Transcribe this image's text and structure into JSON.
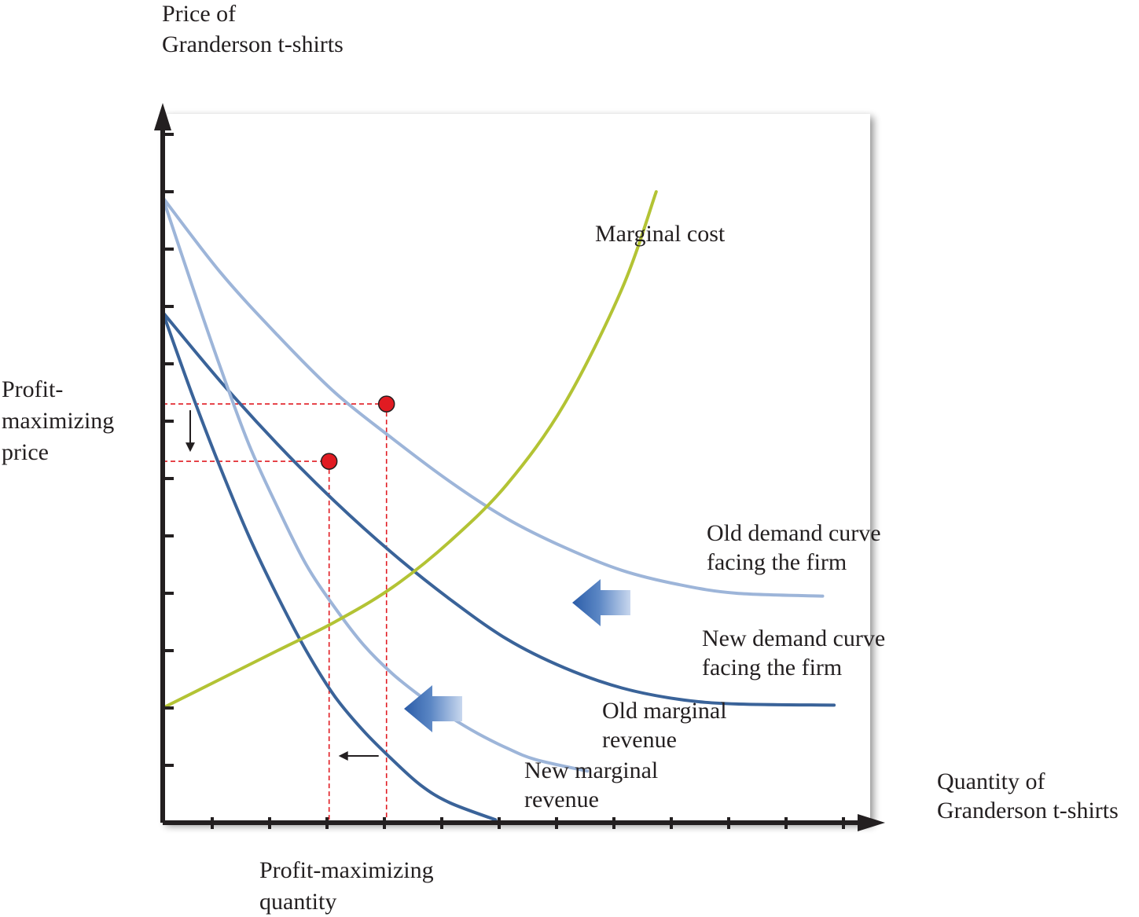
{
  "chart_data": {
    "type": "line",
    "title": "",
    "ylabel": [
      "Price of",
      "Granderson t-shirts"
    ],
    "xlabel": [
      "Quantity of",
      "Granderson t-shirts"
    ],
    "xlim": [
      0,
      12
    ],
    "ylim": [
      0,
      12
    ],
    "x_ticks": [
      1,
      2,
      3,
      4,
      5,
      6,
      7,
      8,
      9,
      10,
      11,
      12
    ],
    "y_ticks": [
      1,
      2,
      3,
      4,
      5,
      6,
      7,
      8,
      9,
      10,
      11,
      12
    ],
    "grid": false,
    "series": [
      {
        "name": "Old demand curve facing the firm",
        "label_lines": [
          "Old demand curve",
          "facing the firm"
        ],
        "color": "#9db5d9",
        "points": [
          [
            0,
            10.9
          ],
          [
            1,
            9.6
          ],
          [
            2,
            8.5
          ],
          [
            3,
            7.5
          ],
          [
            4,
            6.7
          ],
          [
            5,
            5.95
          ],
          [
            6,
            5.3
          ],
          [
            7,
            4.8
          ],
          [
            8,
            4.4
          ],
          [
            9,
            4.15
          ],
          [
            10,
            4.0
          ],
          [
            11.5,
            3.95
          ]
        ]
      },
      {
        "name": "New demand curve facing the firm",
        "label_lines": [
          "New demand curve",
          "facing the firm"
        ],
        "color": "#3a6399",
        "points": [
          [
            0,
            8.9
          ],
          [
            1,
            7.7
          ],
          [
            2,
            6.6
          ],
          [
            3,
            5.6
          ],
          [
            4,
            4.7
          ],
          [
            5,
            3.9
          ],
          [
            6,
            3.2
          ],
          [
            7,
            2.7
          ],
          [
            8,
            2.35
          ],
          [
            9,
            2.15
          ],
          [
            10,
            2.07
          ],
          [
            11.7,
            2.05
          ]
        ]
      },
      {
        "name": "Old marginal revenue",
        "label_lines": [
          "Old marginal",
          "revenue"
        ],
        "color": "#9db5d9",
        "points": [
          [
            0,
            10.9
          ],
          [
            0.5,
            9.4
          ],
          [
            1,
            7.95
          ],
          [
            1.5,
            6.6
          ],
          [
            2,
            5.5
          ],
          [
            2.5,
            4.5
          ],
          [
            3,
            3.75
          ],
          [
            3.5,
            3.1
          ],
          [
            4,
            2.6
          ],
          [
            4.5,
            2.2
          ],
          [
            5,
            1.85
          ],
          [
            5.5,
            1.55
          ],
          [
            6,
            1.3
          ],
          [
            6.5,
            1.1
          ],
          [
            7.4,
            0.9
          ]
        ]
      },
      {
        "name": "New marginal revenue",
        "label_lines": [
          "New marginal",
          "revenue"
        ],
        "color": "#3a6399",
        "points": [
          [
            0,
            8.9
          ],
          [
            0.5,
            7.5
          ],
          [
            1,
            6.2
          ],
          [
            1.5,
            5.0
          ],
          [
            2,
            3.95
          ],
          [
            2.5,
            3.0
          ],
          [
            3,
            2.2
          ],
          [
            3.5,
            1.6
          ],
          [
            4,
            1.1
          ],
          [
            4.5,
            0.65
          ],
          [
            5,
            0.35
          ],
          [
            5.8,
            0.05
          ]
        ]
      },
      {
        "name": "Marginal cost",
        "label_lines": [
          "Marginal cost"
        ],
        "color": "#b3c334",
        "points": [
          [
            0,
            2.0
          ],
          [
            1,
            2.5
          ],
          [
            2,
            3.0
          ],
          [
            3,
            3.5
          ],
          [
            4,
            4.1
          ],
          [
            5,
            4.9
          ],
          [
            6,
            5.9
          ],
          [
            7,
            7.3
          ],
          [
            8,
            9.3
          ],
          [
            8.6,
            11.0
          ]
        ]
      }
    ],
    "equilibria": [
      {
        "x": 3.9,
        "y": 7.3,
        "on": "Old demand curve facing the firm"
      },
      {
        "x": 2.9,
        "y": 6.3,
        "on": "New demand curve facing the firm"
      }
    ],
    "annotations": {
      "price": [
        "Profit-",
        "maximizing",
        "price"
      ],
      "quantity": [
        "Profit-maximizing",
        "quantity"
      ]
    },
    "colors": {
      "axis": "#231f20",
      "dashed_guides": "#e11b22",
      "equilibrium_point": "#e11b22",
      "shift_arrow": "#2b5ca8",
      "plot_background": "#ffffff",
      "page_background": "#ffffff"
    }
  }
}
